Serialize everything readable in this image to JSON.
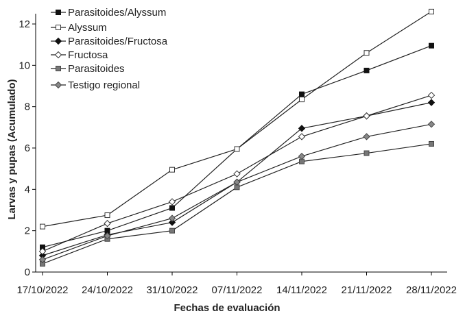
{
  "chart_data": {
    "type": "line",
    "xlabel": "Fechas de evaluación",
    "ylabel": "Larvas y pupas (Acumulado)",
    "categories": [
      "17/10/2022",
      "24/10/2022",
      "31/10/2022",
      "07/11/2022",
      "14/11/2022",
      "21/11/2022",
      "28/11/2022"
    ],
    "ylim": [
      0,
      12
    ],
    "yticks": [
      "0",
      "2",
      "4",
      "6",
      "8",
      "10",
      "12"
    ],
    "grid": false,
    "legend_position": "top-left",
    "series": [
      {
        "name": "Parasitoides/Alyssum",
        "marker": "square",
        "fill": "#111111",
        "stroke": "#111111",
        "values": [
          1.2,
          2.0,
          3.1,
          5.95,
          8.6,
          9.75,
          10.95
        ]
      },
      {
        "name": "Alyssum",
        "marker": "square",
        "fill": "#ffffff",
        "stroke": "#333333",
        "values": [
          2.2,
          2.75,
          4.95,
          5.95,
          8.35,
          10.6,
          12.6
        ]
      },
      {
        "name": "Parasitoides/Fructosa",
        "marker": "diamond",
        "fill": "#111111",
        "stroke": "#111111",
        "values": [
          0.8,
          1.8,
          2.4,
          4.35,
          6.95,
          7.55,
          8.2
        ]
      },
      {
        "name": "Fructosa",
        "marker": "diamond",
        "fill": "#ffffff",
        "stroke": "#333333",
        "values": [
          1.0,
          2.35,
          3.4,
          4.75,
          6.55,
          7.55,
          8.55
        ]
      },
      {
        "name": "Parasitoides",
        "marker": "square",
        "fill": "#777777",
        "stroke": "#444444",
        "values": [
          0.4,
          1.6,
          2.0,
          4.1,
          5.35,
          5.75,
          6.2
        ]
      },
      {
        "name": "Testigo regional",
        "marker": "diamond",
        "fill": "#888888",
        "stroke": "#444444",
        "values": [
          0.6,
          1.75,
          2.6,
          4.35,
          5.6,
          6.55,
          7.15
        ]
      }
    ]
  }
}
